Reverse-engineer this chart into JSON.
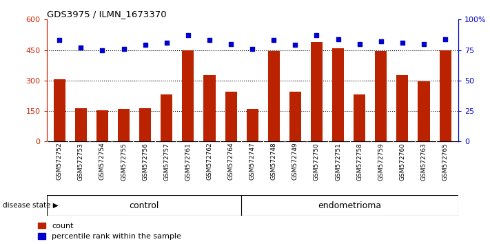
{
  "title": "GDS3975 / ILMN_1673370",
  "samples": [
    "GSM572752",
    "GSM572753",
    "GSM572754",
    "GSM572755",
    "GSM572756",
    "GSM572757",
    "GSM572761",
    "GSM572762",
    "GSM572764",
    "GSM572747",
    "GSM572748",
    "GSM572749",
    "GSM572750",
    "GSM572751",
    "GSM572758",
    "GSM572759",
    "GSM572760",
    "GSM572763",
    "GSM572765"
  ],
  "bar_values": [
    305,
    165,
    155,
    160,
    165,
    230,
    450,
    325,
    245,
    160,
    445,
    245,
    490,
    460,
    230,
    445,
    325,
    295,
    450
  ],
  "percentile_values": [
    83,
    77,
    75,
    76,
    79,
    81,
    87,
    83,
    80,
    76,
    83,
    79,
    87,
    84,
    80,
    82,
    81,
    80,
    84
  ],
  "group_labels": [
    "control",
    "endometrioma"
  ],
  "group_sizes": [
    9,
    10
  ],
  "control_color": "#d6f5d6",
  "endometrioma_color": "#66cc66",
  "bar_color": "#bb2200",
  "dot_color": "#0000cc",
  "ylim_left": [
    0,
    600
  ],
  "ylim_right": [
    0,
    100
  ],
  "yticks_left": [
    0,
    150,
    300,
    450,
    600
  ],
  "ytick_labels_left": [
    "0",
    "150",
    "300",
    "450",
    "600"
  ],
  "yticks_right": [
    0,
    25,
    50,
    75,
    100
  ],
  "ytick_labels_right": [
    "0",
    "25",
    "50",
    "75",
    "100%"
  ],
  "grid_values": [
    150,
    300,
    450
  ],
  "legend_count_label": "count",
  "legend_pct_label": "percentile rank within the sample",
  "disease_state_label": "disease state"
}
